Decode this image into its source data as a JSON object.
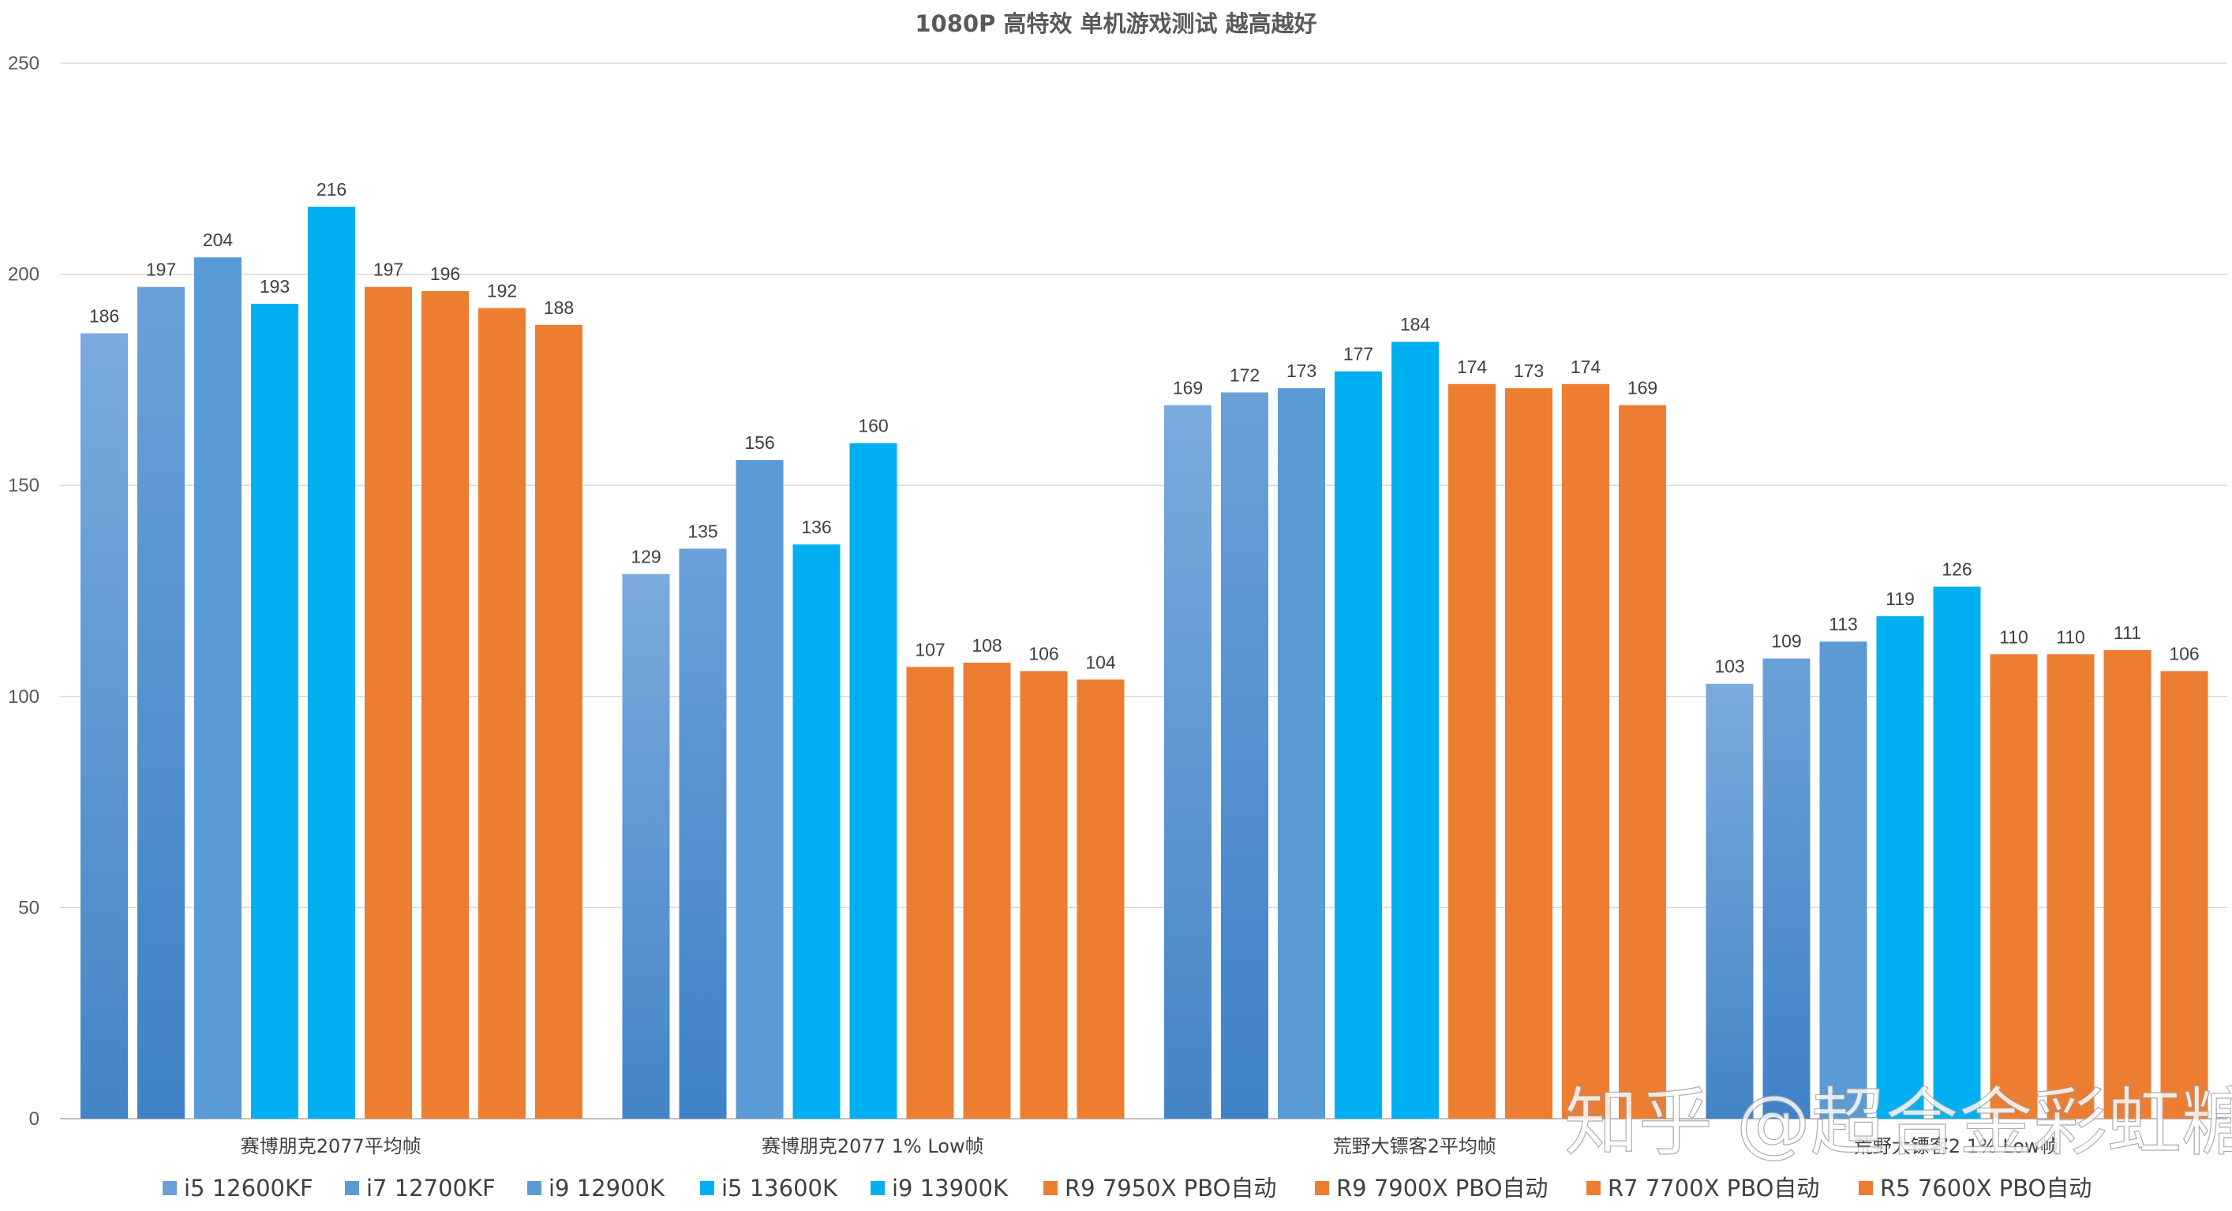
{
  "chart_data": {
    "type": "bar",
    "title": "1080P 高特效 单机游戏测试  越高越好",
    "categories": [
      "赛博朋克2077平均帧",
      "赛博朋克2077   1% Low帧",
      "荒野大镖客2平均帧",
      "荒野大镖客2   1% Low帧"
    ],
    "series": [
      {
        "name": "i5 12600KF",
        "values": [
          186,
          129,
          169,
          103
        ],
        "color": "#6a9fd8"
      },
      {
        "name": "i7 12700KF",
        "values": [
          197,
          135,
          172,
          109
        ],
        "color": "#5b9bd5"
      },
      {
        "name": "i9 12900K",
        "values": [
          204,
          156,
          173,
          113
        ],
        "color": "#5b9bd5"
      },
      {
        "name": "i5 13600K",
        "values": [
          193,
          136,
          177,
          119
        ],
        "color": "#00b0f0"
      },
      {
        "name": "i9 13900K",
        "values": [
          216,
          160,
          184,
          126
        ],
        "color": "#00b0f0"
      },
      {
        "name": "R9 7950X PBO自动",
        "values": [
          197,
          107,
          174,
          110
        ],
        "color": "#ed7d31"
      },
      {
        "name": "R9 7900X PBO自动",
        "values": [
          196,
          108,
          173,
          110
        ],
        "color": "#ed7d31"
      },
      {
        "name": "R7 7700X PBO自动",
        "values": [
          192,
          106,
          174,
          111
        ],
        "color": "#ed7d31"
      },
      {
        "name": "R5 7600X PBO自动",
        "values": [
          188,
          104,
          169,
          106
        ],
        "color": "#ed7d31"
      }
    ],
    "ylim": [
      0,
      250
    ],
    "yticks": [
      "0",
      "50",
      "100",
      "150",
      "200",
      "250"
    ],
    "grid": true,
    "legend_position": "bottom"
  },
  "watermark": "知乎 @超合金彩虹糖"
}
